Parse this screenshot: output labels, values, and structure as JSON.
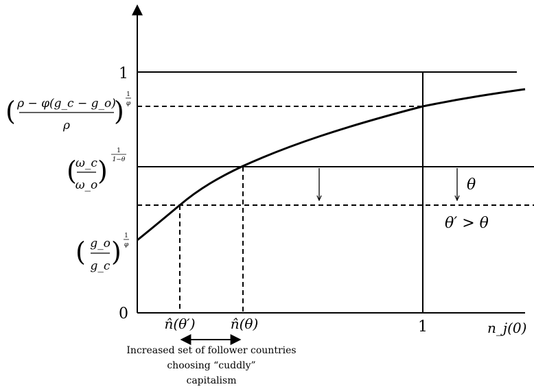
{
  "axes": {
    "x_label": "n_j(0)",
    "y_ticks": [
      "0",
      "1"
    ],
    "x_tick_one": "1"
  },
  "y_labels": {
    "top_ratio": {
      "numerator": "ρ − φ(g_c − g_o)",
      "denominator": "ρ",
      "exponent_num": "1",
      "exponent_den": "φ"
    },
    "wage_ratio": {
      "numerator": "ω_c",
      "denominator": "ω_o",
      "exponent_num": "1",
      "exponent_den": "1−θ"
    },
    "growth_ratio": {
      "numerator": "g_o",
      "denominator": "g_c",
      "exponent_num": "1",
      "exponent_den": "φ"
    }
  },
  "x_markers": {
    "n_hat_theta_prime": "n̂(θ′)",
    "n_hat_theta": "n̂(θ)"
  },
  "line_labels": {
    "theta": "θ",
    "theta_prime": "θ′ > θ"
  },
  "caption": {
    "line1": "Increased set of follower countries",
    "line2": "choosing “cuddly”",
    "line3": "capitalism"
  }
}
